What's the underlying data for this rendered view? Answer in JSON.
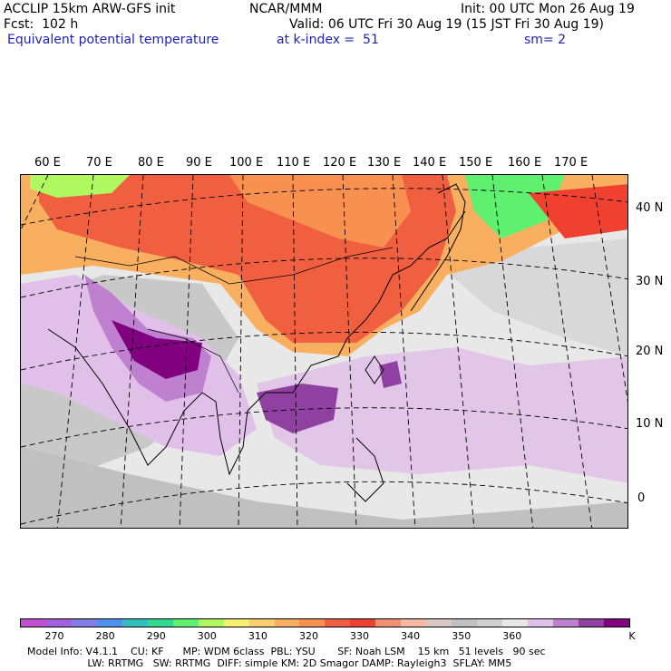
{
  "header": {
    "left1": "ACCLIP 15km ARW-GFS init",
    "center1": "NCAR/MMM",
    "right1": "Init: 00 UTC Mon 26 Aug 19",
    "left2": "Fcst:  102 h",
    "right2": "Valid: 06 UTC Fri 30 Aug 19 (15 JST Fri 30 Aug 19)",
    "field": "Equivalent potential temperature",
    "level": "at k-index =  51",
    "smooth": "sm= 2"
  },
  "lon_labels": [
    "60 E",
    "70 E",
    "80 E",
    "90 E",
    "100 E",
    "110 E",
    "120 E",
    "130 E",
    "140 E",
    "150 E",
    "160 E",
    "170 E"
  ],
  "lat_labels": [
    "40 N",
    "30 N",
    "20 N",
    "10 N",
    "0"
  ],
  "colorbar": {
    "colors": [
      "#c050d0",
      "#a060e0",
      "#8080e8",
      "#5090f0",
      "#30c0c0",
      "#30d890",
      "#60f070",
      "#b0f860",
      "#f8f070",
      "#f8d070",
      "#f8b060",
      "#f89050",
      "#f06040",
      "#f04030",
      "#f09070",
      "#f8b8a0",
      "#d8c8c0",
      "#c0c0c0",
      "#d0d0d0",
      "#e8e8e8",
      "#e0c0e8",
      "#c080d0",
      "#9040a0",
      "#800080"
    ],
    "ticks": [
      "270",
      "280",
      "290",
      "300",
      "310",
      "320",
      "330",
      "340",
      "350",
      "360"
    ],
    "unit": "K"
  },
  "model_info": {
    "line1": "Model Info: V4.1.1    CU: KF      MP: WDM 6class  PBL: YSU       SF: Noah LSM    15 km   51 levels   90 sec",
    "line2": "                   LW: RRTMG   SW: RRTMG  DIFF: simple KM: 2D Smagor DAMP: Rayleigh3  SFLAY: MM5"
  }
}
